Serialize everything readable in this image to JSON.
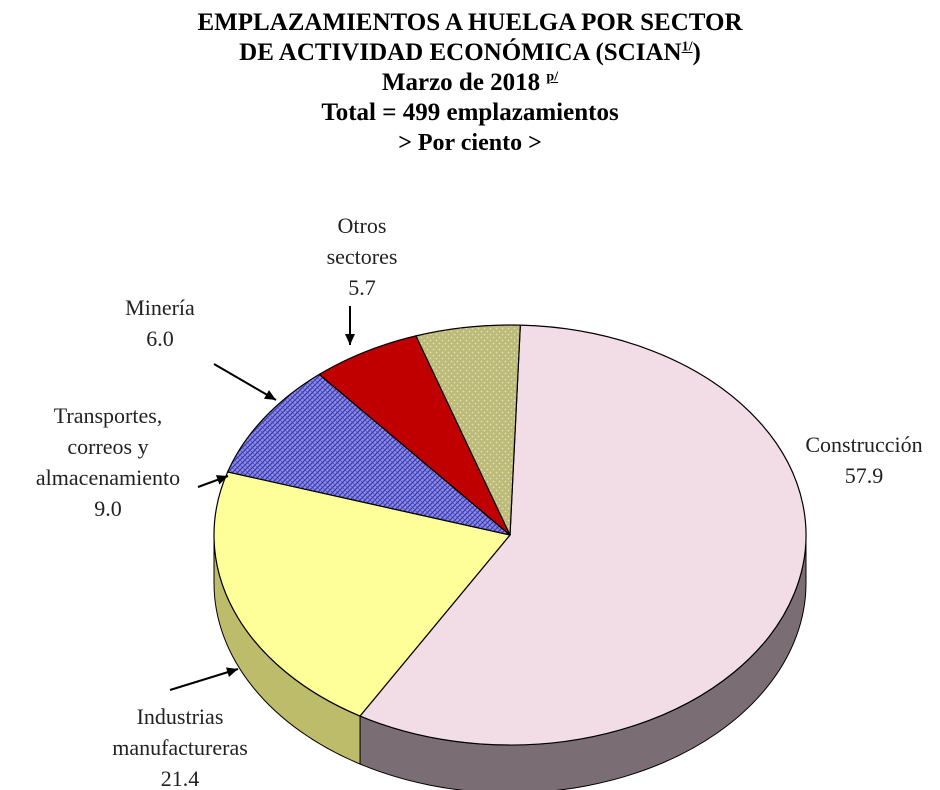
{
  "header": {
    "line1": "EMPLAZAMIENTOS A HUELGA POR SECTOR",
    "line2": "DE ACTIVIDAD ECONÓMICA (SCIAN",
    "line2_note": "1/",
    "line2_close": ")",
    "line3": "Marzo de 2018",
    "line3_note": "p/",
    "line4": "Total = 499 emplazamientos",
    "line5": "> Por ciento >"
  },
  "chart_data": {
    "type": "pie",
    "slices": [
      {
        "label": "Construcción",
        "value": 57.9,
        "color": "#f2dde6"
      },
      {
        "label": "Industrias manufactureras",
        "value": 21.4,
        "color": "#ffff99"
      },
      {
        "label": "Transportes, correos y almacenamiento",
        "value": 9.0,
        "color": "#8080e0"
      },
      {
        "label": "Minería",
        "value": 6.0,
        "color": "#c00000"
      },
      {
        "label": "Otros sectores",
        "value": 5.7,
        "color": "#bdbb7a"
      }
    ],
    "labels": [
      {
        "lines": [
          "Construcción",
          "57.9"
        ]
      },
      {
        "lines": [
          "Industrias",
          "manufactureras",
          "21.4"
        ]
      },
      {
        "lines": [
          "Transportes,",
          "correos y",
          "almacenamiento",
          "9.0"
        ]
      },
      {
        "lines": [
          "Minería",
          "6.0"
        ]
      },
      {
        "lines": [
          "Otros",
          "sectores",
          "5.7"
        ]
      }
    ]
  }
}
